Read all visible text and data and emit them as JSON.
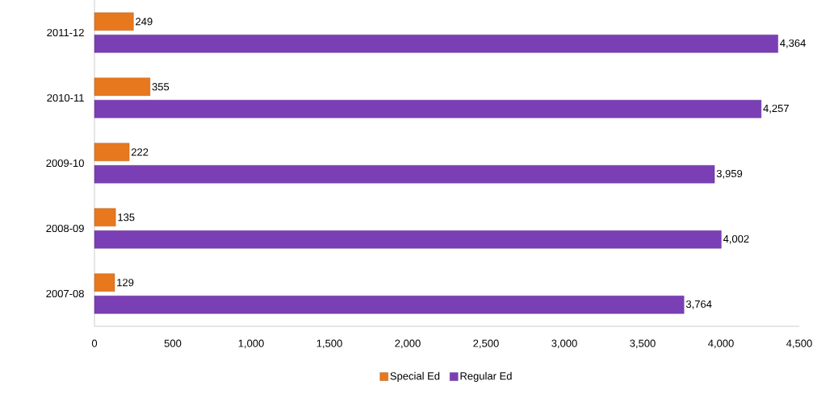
{
  "chart_data": {
    "type": "bar",
    "orientation": "horizontal",
    "categories": [
      "2011-12",
      "2010-11",
      "2009-10",
      "2008-09",
      "2007-08"
    ],
    "series": [
      {
        "name": "Special Ed",
        "color": "#e8781e",
        "values": [
          249,
          355,
          222,
          135,
          129
        ],
        "value_labels": [
          "249",
          "355",
          "222",
          "135",
          "129"
        ]
      },
      {
        "name": "Regular Ed",
        "color": "#7b3fb5",
        "values": [
          4364,
          4257,
          3959,
          4002,
          3764
        ],
        "value_labels": [
          "4,364",
          "4,257",
          "3,959",
          "4,002",
          "3,764"
        ]
      }
    ],
    "xlim": [
      0,
      4500
    ],
    "xticks": [
      0,
      500,
      {
        "value": 1000,
        "label": "1,000"
      },
      {
        "value": 1500,
        "label": "1,500"
      },
      {
        "value": 2000,
        "label": "2,000"
      },
      {
        "value": 2500,
        "label": "2,500"
      },
      {
        "value": 3000,
        "label": "3,000"
      },
      {
        "value": 3500,
        "label": "3,500"
      },
      {
        "value": 4000,
        "label": "4,000"
      },
      {
        "value": 4500,
        "label": "4,500"
      }
    ],
    "legend": "bottom"
  }
}
